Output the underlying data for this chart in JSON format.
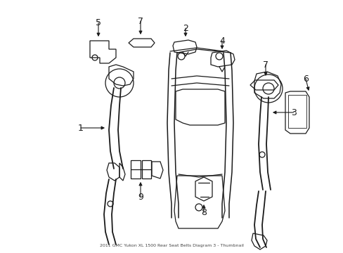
{
  "title": "2011 GMC Yukon XL 1500 Rear Seat Belts Diagram 3 - Thumbnail",
  "background_color": "#ffffff",
  "line_color": "#1a1a1a",
  "fig_width": 4.89,
  "fig_height": 3.6,
  "dpi": 100,
  "border_color": "#cccccc"
}
